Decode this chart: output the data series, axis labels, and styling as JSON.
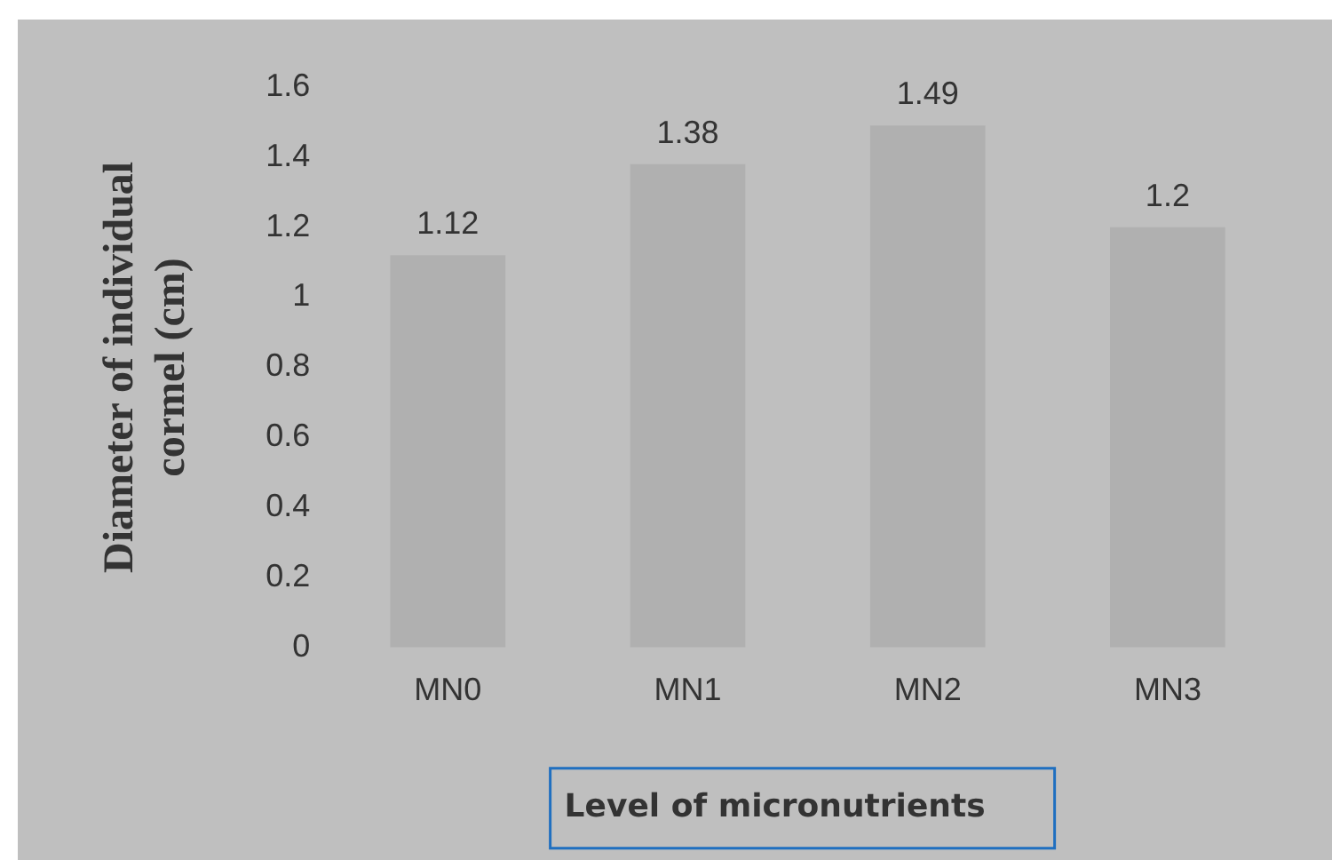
{
  "chart_data": {
    "type": "bar",
    "xlabel": "Level of micronutrients",
    "ylabel": "Diameter of individual cormel (cm)",
    "categories": [
      "MN0",
      "MN1",
      "MN2",
      "MN3"
    ],
    "values": [
      1.12,
      1.38,
      1.49,
      1.2
    ],
    "color": "#b0b0b0",
    "ylim": [
      0,
      1.6
    ],
    "yticks": [
      0,
      0.2,
      0.4,
      0.6,
      0.8,
      1,
      1.2,
      1.4,
      1.6
    ],
    "data_labels": true
  }
}
